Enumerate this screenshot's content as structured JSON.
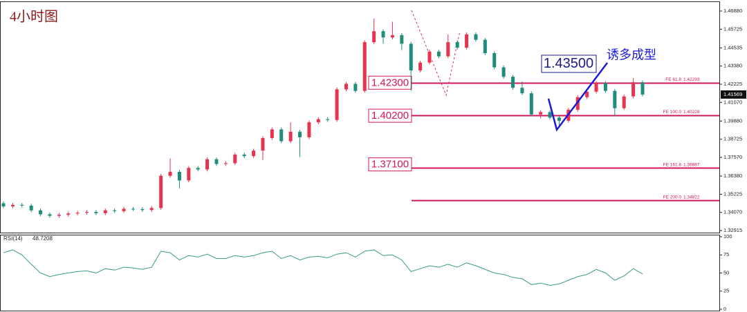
{
  "chart_data": [
    {
      "type": "candlestick",
      "title": "4小时图",
      "up_color": "#e8334f",
      "down_color": "#1f8c7c",
      "level_color": "#d4145a",
      "annotation_color": "#1a1ad6",
      "ylim": [
        1.32783,
        1.47495
      ],
      "yticks": [
        {
          "value": 1.4688,
          "label": "1.46880"
        },
        {
          "value": 1.45725,
          "label": "1.45725"
        },
        {
          "value": 1.44535,
          "label": "1.44535"
        },
        {
          "value": 1.4338,
          "label": "1.43380"
        },
        {
          "value": 1.42225,
          "label": "1.42225"
        },
        {
          "value": 1.4107,
          "label": "1.41070"
        },
        {
          "value": 1.3988,
          "label": "1.39880"
        },
        {
          "value": 1.38725,
          "label": "1.38725"
        },
        {
          "value": 1.3757,
          "label": "1.37570"
        },
        {
          "value": 1.3638,
          "label": "1.36380"
        },
        {
          "value": 1.35225,
          "label": "1.35225"
        },
        {
          "value": 1.3407,
          "label": "1.34070"
        },
        {
          "value": 1.32915,
          "label": "1.32915"
        }
      ],
      "open": [
        1.3465,
        1.3445,
        1.3455,
        1.345,
        1.342,
        1.3395,
        1.3385,
        1.3392,
        1.34,
        1.3405,
        1.341,
        1.3402,
        1.342,
        1.3415,
        1.343,
        1.3428,
        1.3422,
        1.3435,
        1.364,
        1.3665,
        1.361,
        1.369,
        1.368,
        1.3745,
        1.3715,
        1.372,
        1.3775,
        1.3765,
        1.38,
        1.388,
        1.3935,
        1.386,
        1.392,
        1.3885,
        1.398,
        1.4,
        1.3995,
        1.419,
        1.4225,
        1.418,
        1.449,
        1.456,
        1.452,
        1.4535,
        1.448,
        1.431,
        1.436,
        1.443,
        1.44,
        1.449,
        1.4455,
        1.454,
        1.4505,
        1.442,
        1.433,
        1.427,
        1.42,
        1.4165,
        1.403,
        1.4045,
        1.401,
        1.399,
        1.406,
        1.414,
        1.4175,
        1.423,
        1.418,
        1.407,
        1.4145,
        1.4235
      ],
      "high": [
        1.3477,
        1.3467,
        1.3467,
        1.3462,
        1.3432,
        1.3407,
        1.3404,
        1.3412,
        1.3417,
        1.3422,
        1.3422,
        1.3432,
        1.3432,
        1.3442,
        1.3442,
        1.344,
        1.3447,
        1.3652,
        1.375,
        1.3677,
        1.3702,
        1.3702,
        1.3757,
        1.3757,
        1.3732,
        1.3787,
        1.3787,
        1.3812,
        1.3892,
        1.3947,
        1.3947,
        1.398,
        1.3932,
        1.3992,
        1.4012,
        1.4012,
        1.4202,
        1.4237,
        1.4237,
        1.4502,
        1.464,
        1.4572,
        1.462,
        1.4547,
        1.4492,
        1.4372,
        1.4442,
        1.4442,
        1.454,
        1.4502,
        1.4552,
        1.4552,
        1.4517,
        1.4432,
        1.4342,
        1.4282,
        1.424,
        1.4177,
        1.4057,
        1.4057,
        1.4022,
        1.4072,
        1.4152,
        1.4187,
        1.4242,
        1.4242,
        1.4192,
        1.4157,
        1.4262,
        1.4247
      ],
      "low": [
        1.3433,
        1.3433,
        1.3438,
        1.3408,
        1.3383,
        1.3373,
        1.3373,
        1.338,
        1.3388,
        1.3393,
        1.339,
        1.339,
        1.3403,
        1.3403,
        1.3416,
        1.341,
        1.341,
        1.3423,
        1.3628,
        1.356,
        1.3598,
        1.3668,
        1.3668,
        1.3703,
        1.3703,
        1.3708,
        1.3753,
        1.3753,
        1.374,
        1.3868,
        1.3848,
        1.3848,
        1.376,
        1.3873,
        1.3968,
        1.3983,
        1.3983,
        1.4178,
        1.4168,
        1.4168,
        1.4478,
        1.448,
        1.4508,
        1.444,
        1.418,
        1.4298,
        1.4348,
        1.4388,
        1.4388,
        1.4443,
        1.4443,
        1.4493,
        1.4408,
        1.4318,
        1.4258,
        1.4188,
        1.4153,
        1.4018,
        1.4005,
        1.3998,
        1.395,
        1.3978,
        1.4048,
        1.4128,
        1.4163,
        1.4168,
        1.402,
        1.4058,
        1.4133,
        1.4145
      ],
      "close": [
        1.3445,
        1.3455,
        1.345,
        1.342,
        1.3395,
        1.3385,
        1.3392,
        1.34,
        1.3405,
        1.341,
        1.3402,
        1.342,
        1.3415,
        1.343,
        1.3428,
        1.3422,
        1.3435,
        1.364,
        1.3665,
        1.361,
        1.369,
        1.368,
        1.3745,
        1.3715,
        1.372,
        1.3775,
        1.3765,
        1.38,
        1.388,
        1.3935,
        1.386,
        1.392,
        1.3885,
        1.398,
        1.4,
        1.3995,
        1.419,
        1.4225,
        1.418,
        1.449,
        1.456,
        1.452,
        1.4535,
        1.448,
        1.431,
        1.436,
        1.443,
        1.44,
        1.449,
        1.4455,
        1.454,
        1.4505,
        1.442,
        1.433,
        1.427,
        1.42,
        1.4165,
        1.403,
        1.4045,
        1.401,
        1.399,
        1.406,
        1.414,
        1.4175,
        1.423,
        1.418,
        1.407,
        1.4145,
        1.4235,
        1.41569
      ],
      "levels": [
        {
          "label": "FE 61.8",
          "value": 1.42293
        },
        {
          "label": "FE 100.0",
          "value": 1.40228
        },
        {
          "label": "FE 161.8",
          "value": 1.36887
        },
        {
          "label": "FE 200.0",
          "value": 1.34822
        }
      ],
      "callouts": [
        {
          "value": 1.423,
          "label": "1.42300"
        },
        {
          "value": 1.402,
          "label": "1.40200"
        },
        {
          "value": 1.371,
          "label": "1.37100"
        }
      ],
      "annotation": {
        "value": 1.435,
        "label": "1.43500",
        "text": "诱多成型"
      }
    },
    {
      "type": "line",
      "label": "RSI(14)",
      "ylim": [
        0,
        100
      ],
      "yticks": [
        0,
        25,
        50,
        75,
        100
      ],
      "series": [
        {
          "name": "RSI(14)",
          "color": "#3a9a8a",
          "values": [
            78,
            82,
            75,
            62,
            50,
            45,
            48,
            50,
            52,
            53,
            50,
            56,
            54,
            58,
            57,
            55,
            58,
            80,
            78,
            68,
            74,
            72,
            76,
            70,
            70,
            74,
            72,
            74,
            78,
            80,
            70,
            74,
            68,
            72,
            73,
            71,
            76,
            78,
            72,
            80,
            82,
            74,
            75,
            68,
            52,
            56,
            60,
            58,
            62,
            58,
            64,
            60,
            55,
            50,
            48,
            44,
            42,
            34,
            36,
            33,
            35,
            40,
            45,
            48,
            55,
            50,
            40,
            46,
            56,
            48.7208
          ]
        }
      ]
    }
  ]
}
